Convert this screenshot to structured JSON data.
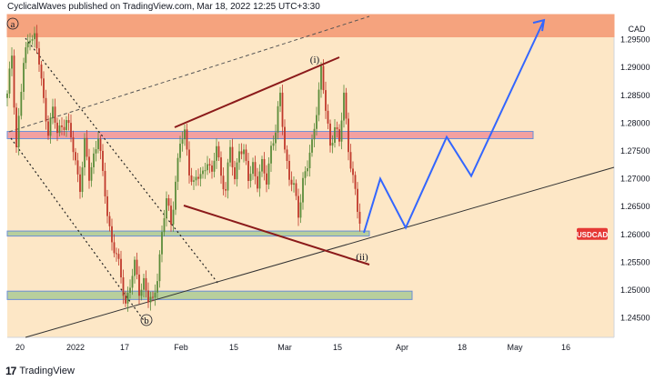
{
  "header": {
    "text": "CyclicalWaves published on TradingView.com, Mar 18, 2022 12:25 UTC+3:30"
  },
  "footer": {
    "logo_glyph": "17",
    "brand": "TradingView"
  },
  "colors": {
    "bg": "#fde7c6",
    "upper_zone": "#f5a37e",
    "resistance_zone": "#f3a0a0",
    "support_zone": "#b8cf9c",
    "candle_up": "#5b8c3a",
    "candle_down": "#c0392b",
    "projection": "#3366ff",
    "triangle": "#8b1a1a",
    "price_badge": "#e53935"
  },
  "chart_data": {
    "type": "candlestick",
    "symbol_label": "USDCAD",
    "currency_label": "CAD",
    "y_ticks": [
      "1.29500",
      "1.29000",
      "1.28500",
      "1.28000",
      "1.27500",
      "1.27000",
      "1.26500",
      "1.26000",
      "1.25500",
      "1.25000",
      "1.24500"
    ],
    "x_ticks": [
      "20",
      "2022",
      "17",
      "Feb",
      "15",
      "Mar",
      "15",
      "Apr",
      "18",
      "May",
      "16"
    ],
    "ylim": [
      1.2415,
      1.2995
    ],
    "last_price": 1.26,
    "wave_labels": [
      "a",
      "b",
      "(i)",
      "(ii)"
    ],
    "zones": [
      {
        "name": "upper",
        "low": 1.2955,
        "high": 1.2995
      },
      {
        "name": "resistance",
        "low": 1.2772,
        "high": 1.2785
      },
      {
        "name": "support-1",
        "low": 1.2597,
        "high": 1.2606
      },
      {
        "name": "support-2",
        "low": 1.2483,
        "high": 1.2498
      }
    ],
    "price_path": [
      [
        0,
        1.2845
      ],
      [
        5,
        1.2925
      ],
      [
        10,
        1.276
      ],
      [
        18,
        1.2905
      ],
      [
        25,
        1.2963
      ],
      [
        30,
        1.2955
      ],
      [
        35,
        1.2905
      ],
      [
        40,
        1.284
      ],
      [
        45,
        1.279
      ],
      [
        50,
        1.282
      ],
      [
        55,
        1.278
      ],
      [
        60,
        1.28
      ],
      [
        65,
        1.2805
      ],
      [
        70,
        1.277
      ],
      [
        75,
        1.273
      ],
      [
        80,
        1.269
      ],
      [
        85,
        1.276
      ],
      [
        90,
        1.27
      ],
      [
        95,
        1.2745
      ],
      [
        100,
        1.278
      ],
      [
        105,
        1.27
      ],
      [
        110,
        1.264
      ],
      [
        115,
        1.259
      ],
      [
        120,
        1.256
      ],
      [
        125,
        1.252
      ],
      [
        130,
        1.248
      ],
      [
        135,
        1.251
      ],
      [
        140,
        1.254
      ],
      [
        145,
        1.25
      ],
      [
        150,
        1.252
      ],
      [
        155,
        1.248
      ],
      [
        160,
        1.2475
      ],
      [
        165,
        1.253
      ],
      [
        170,
        1.26
      ],
      [
        175,
        1.266
      ],
      [
        180,
        1.262
      ],
      [
        185,
        1.27
      ],
      [
        190,
        1.276
      ],
      [
        195,
        1.278
      ],
      [
        200,
        1.272
      ],
      [
        205,
        1.269
      ],
      [
        210,
        1.27
      ],
      [
        215,
        1.271
      ],
      [
        220,
        1.274
      ],
      [
        225,
        1.27
      ],
      [
        230,
        1.276
      ],
      [
        235,
        1.271
      ],
      [
        240,
        1.268
      ],
      [
        245,
        1.275
      ],
      [
        250,
        1.27
      ],
      [
        255,
        1.276
      ],
      [
        260,
        1.274
      ],
      [
        265,
        1.27
      ],
      [
        270,
        1.273
      ],
      [
        275,
        1.269
      ],
      [
        280,
        1.272
      ],
      [
        285,
        1.27
      ],
      [
        290,
        1.276
      ],
      [
        295,
        1.278
      ],
      [
        300,
        1.285
      ],
      [
        305,
        1.276
      ],
      [
        310,
        1.27
      ],
      [
        315,
        1.268
      ],
      [
        320,
        1.264
      ],
      [
        325,
        1.27
      ],
      [
        330,
        1.272
      ],
      [
        335,
        1.276
      ],
      [
        340,
        1.283
      ],
      [
        345,
        1.2895
      ],
      [
        350,
        1.282
      ],
      [
        355,
        1.276
      ],
      [
        360,
        1.28
      ],
      [
        365,
        1.276
      ],
      [
        370,
        1.285
      ],
      [
        375,
        1.276
      ],
      [
        380,
        1.27
      ],
      [
        385,
        1.264
      ],
      [
        390,
        1.26
      ]
    ],
    "projection_path": [
      [
        392,
        1.2603
      ],
      [
        410,
        1.27
      ],
      [
        438,
        1.2612
      ],
      [
        483,
        1.2775
      ],
      [
        510,
        1.2705
      ],
      [
        590,
        1.2985
      ]
    ]
  }
}
